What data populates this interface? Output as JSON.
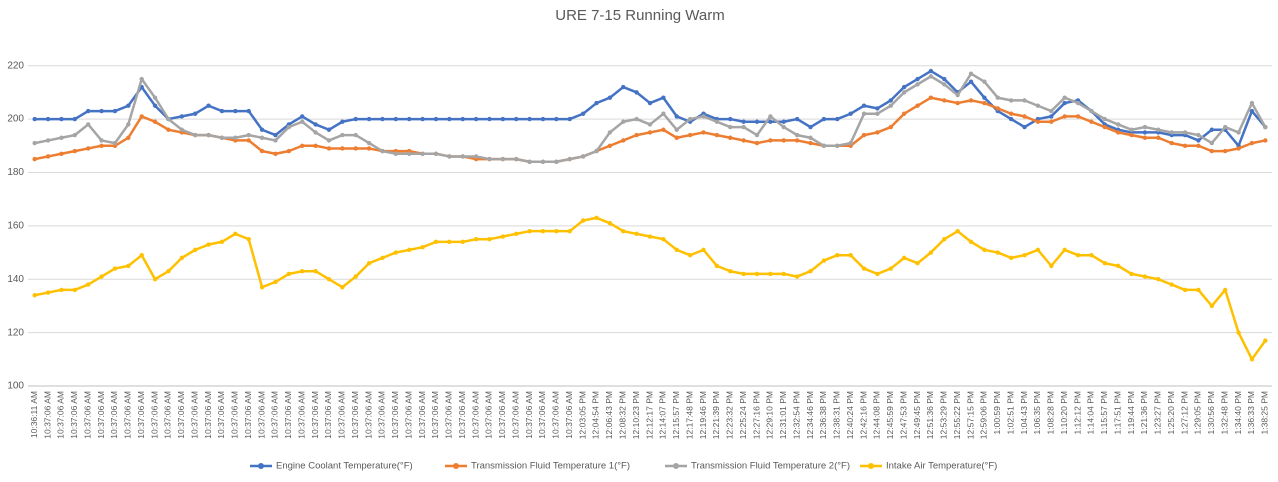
{
  "chart_data": {
    "type": "line",
    "title": "URE 7-15 Running Warm",
    "categories": [
      "10:36:11 AM",
      "10:37:06 AM",
      "10:37:06 AM",
      "10:37:06 AM",
      "10:37:06 AM",
      "10:37:06 AM",
      "10:37:06 AM",
      "10:37:06 AM",
      "10:37:06 AM",
      "10:37:06 AM",
      "10:37:06 AM",
      "10:37:06 AM",
      "10:37:06 AM",
      "10:37:06 AM",
      "10:37:06 AM",
      "10:37:06 AM",
      "10:37:06 AM",
      "10:37:06 AM",
      "10:37:06 AM",
      "10:37:06 AM",
      "10:37:06 AM",
      "10:37:06 AM",
      "10:37:06 AM",
      "10:37:06 AM",
      "10:37:06 AM",
      "10:37:06 AM",
      "10:37:06 AM",
      "10:37:06 AM",
      "10:37:06 AM",
      "10:37:06 AM",
      "10:37:06 AM",
      "10:37:06 AM",
      "10:37:06 AM",
      "10:37:06 AM",
      "10:37:06 AM",
      "10:37:06 AM",
      "10:37:06 AM",
      "10:37:06 AM",
      "10:37:06 AM",
      "10:37:06 AM",
      "10:37:06 AM",
      "12:03:05 PM",
      "12:04:54 PM",
      "12:06:43 PM",
      "12:08:32 PM",
      "12:10:23 PM",
      "12:12:17 PM",
      "12:14:07 PM",
      "12:15:57 PM",
      "12:17:48 PM",
      "12:19:46 PM",
      "12:21:39 PM",
      "12:23:32 PM",
      "12:25:24 PM",
      "12:27:16 PM",
      "12:29:10 PM",
      "12:31:01 PM",
      "12:32:54 PM",
      "12:34:46 PM",
      "12:36:38 PM",
      "12:38:31 PM",
      "12:40:24 PM",
      "12:42:16 PM",
      "12:44:08 PM",
      "12:45:59 PM",
      "12:47:53 PM",
      "12:49:45 PM",
      "12:51:36 PM",
      "12:53:29 PM",
      "12:55:22 PM",
      "12:57:15 PM",
      "12:59:06 PM",
      "1:00:59 PM",
      "1:02:51 PM",
      "1:04:43 PM",
      "1:06:35 PM",
      "1:08:28 PM",
      "1:10:20 PM",
      "1:12:12 PM",
      "1:14:04 PM",
      "1:15:57 PM",
      "1:17:51 PM",
      "1:19:44 PM",
      "1:21:36 PM",
      "1:23:27 PM",
      "1:25:20 PM",
      "1:27:12 PM",
      "1:29:05 PM",
      "1:30:56 PM",
      "1:32:48 PM",
      "1:34:40 PM",
      "1:36:33 PM",
      "1:38:25 PM"
    ],
    "series": [
      {
        "name": "Engine Coolant Temperature(°F)",
        "color": "#4472c4",
        "values": [
          200,
          200,
          200,
          200,
          203,
          203,
          203,
          205,
          212,
          205,
          200,
          201,
          202,
          205,
          203,
          203,
          203,
          196,
          194,
          198,
          201,
          198,
          196,
          199,
          200,
          200,
          200,
          200,
          200,
          200,
          200,
          200,
          200,
          200,
          200,
          200,
          200,
          200,
          200,
          200,
          200,
          202,
          206,
          208,
          212,
          210,
          206,
          208,
          201,
          199,
          202,
          200,
          200,
          199,
          199,
          199,
          199,
          200,
          197,
          200,
          200,
          202,
          205,
          204,
          207,
          212,
          215,
          218,
          215,
          210,
          214,
          208,
          203,
          200,
          197,
          200,
          201,
          206,
          207,
          203,
          198,
          196,
          195,
          195,
          195,
          194,
          194,
          192,
          196,
          196,
          190,
          203,
          197
        ]
      },
      {
        "name": "Transmission Fluid Temperature 1(°F)",
        "color": "#ed7d31",
        "values": [
          185,
          186,
          187,
          188,
          189,
          190,
          190,
          193,
          201,
          199,
          196,
          195,
          194,
          194,
          193,
          192,
          192,
          188,
          187,
          188,
          190,
          190,
          189,
          189,
          189,
          189,
          188,
          188,
          188,
          187,
          187,
          186,
          186,
          185,
          185,
          185,
          185,
          184,
          184,
          184,
          185,
          186,
          188,
          190,
          192,
          194,
          195,
          196,
          193,
          194,
          195,
          194,
          193,
          192,
          191,
          192,
          192,
          192,
          191,
          190,
          190,
          190,
          194,
          195,
          197,
          202,
          205,
          208,
          207,
          206,
          207,
          206,
          204,
          202,
          201,
          199,
          199,
          201,
          201,
          199,
          197,
          195,
          194,
          193,
          193,
          191,
          190,
          190,
          188,
          188,
          189,
          191,
          192
        ]
      },
      {
        "name": "Transmission Fluid Temperature 2(°F)",
        "color": "#a5a5a5",
        "values": [
          191,
          192,
          193,
          194,
          198,
          192,
          191,
          198,
          215,
          208,
          200,
          196,
          194,
          194,
          193,
          193,
          194,
          193,
          192,
          197,
          199,
          195,
          192,
          194,
          194,
          191,
          188,
          187,
          187,
          187,
          187,
          186,
          186,
          186,
          185,
          185,
          185,
          184,
          184,
          184,
          185,
          186,
          188,
          195,
          199,
          200,
          198,
          202,
          196,
          200,
          201,
          199,
          197,
          197,
          194,
          201,
          197,
          194,
          193,
          190,
          190,
          191,
          202,
          202,
          205,
          210,
          213,
          216,
          213,
          209,
          217,
          214,
          208,
          207,
          207,
          205,
          203,
          208,
          206,
          203,
          200,
          198,
          196,
          197,
          196,
          195,
          195,
          194,
          191,
          197,
          195,
          206,
          197
        ]
      },
      {
        "name": "Intake Air Temperature(°F)",
        "color": "#ffc000",
        "values": [
          134,
          135,
          136,
          136,
          138,
          141,
          144,
          145,
          149,
          140,
          143,
          148,
          151,
          153,
          154,
          157,
          155,
          137,
          139,
          142,
          143,
          143,
          140,
          137,
          141,
          146,
          148,
          150,
          151,
          152,
          154,
          154,
          154,
          155,
          155,
          156,
          157,
          158,
          158,
          158,
          158,
          162,
          163,
          161,
          158,
          157,
          156,
          155,
          151,
          149,
          151,
          145,
          143,
          142,
          142,
          142,
          142,
          141,
          143,
          147,
          149,
          149,
          144,
          142,
          144,
          148,
          146,
          150,
          155,
          158,
          154,
          151,
          150,
          148,
          149,
          151,
          145,
          151,
          149,
          149,
          146,
          145,
          142,
          141,
          140,
          138,
          136,
          136,
          130,
          136,
          120,
          110,
          117
        ]
      }
    ],
    "ylim": [
      100,
      230
    ],
    "yticks": [
      100,
      120,
      140,
      160,
      180,
      200,
      220
    ],
    "grid": true,
    "legend": "bottom"
  }
}
